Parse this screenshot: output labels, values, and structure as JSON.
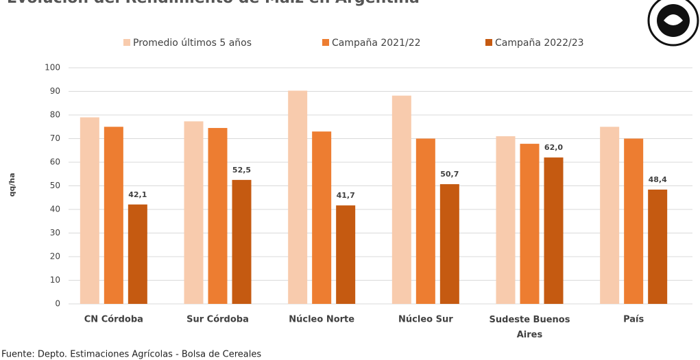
{
  "chart_data": {
    "type": "bar",
    "title": "Evolución del Rendimiento de Maíz en Argentina",
    "y_label": "qq/ha",
    "source": "Fuente: Depto. Estimaciones Agrícolas - Bolsa de Cereales",
    "categories": [
      "CN Córdoba",
      "Sur Córdoba",
      "Núcleo Norte",
      "Núcleo Sur",
      "Sudeste Buenos Aires",
      "País"
    ],
    "series": [
      {
        "name": "Promedio últimos 5 años",
        "color": "#f8cbad",
        "values": [
          79,
          77.3,
          90.3,
          88.2,
          71,
          75
        ]
      },
      {
        "name": "Campaña 2021/22",
        "color": "#ed7d31",
        "values": [
          75,
          74.5,
          73,
          70,
          67.8,
          70
        ]
      },
      {
        "name": "Campaña 2022/23",
        "color": "#c55a11",
        "values": [
          42.1,
          52.5,
          41.7,
          50.7,
          62.0,
          48.4
        ],
        "value_labels": [
          "42,1",
          "52,5",
          "41,7",
          "50,7",
          "62,0",
          "48,4"
        ]
      }
    ],
    "ylim": [
      0,
      100
    ],
    "yticks": [
      0,
      10,
      20,
      30,
      40,
      50,
      60,
      70,
      80,
      90,
      100
    ],
    "grid": true,
    "legend": "top"
  }
}
